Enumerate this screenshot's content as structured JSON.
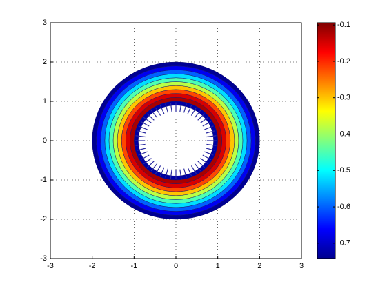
{
  "chart_data": {
    "type": "annulus-contour",
    "xlim": [
      -3,
      3
    ],
    "ylim": [
      -3,
      3
    ],
    "xticks": [
      -3,
      -2,
      -1,
      0,
      1,
      2,
      3
    ],
    "yticks": [
      -3,
      -2,
      -1,
      0,
      1,
      2,
      3
    ],
    "grid": true,
    "radii": [
      0.9,
      1.0,
      1.1,
      1.2,
      1.3,
      1.4,
      1.5,
      1.6,
      1.7,
      1.8,
      1.9,
      2.0
    ],
    "values": [
      -0.72,
      -0.12,
      -0.15,
      -0.22,
      -0.3,
      -0.38,
      -0.45,
      -0.52,
      -0.6,
      -0.67,
      -0.73
    ],
    "colorbar": {
      "lim": [
        -0.742,
        -0.094
      ],
      "ticks": [
        -0.7,
        -0.6,
        -0.5,
        -0.4,
        -0.3,
        -0.2,
        -0.1
      ],
      "colormap": "jet"
    }
  }
}
